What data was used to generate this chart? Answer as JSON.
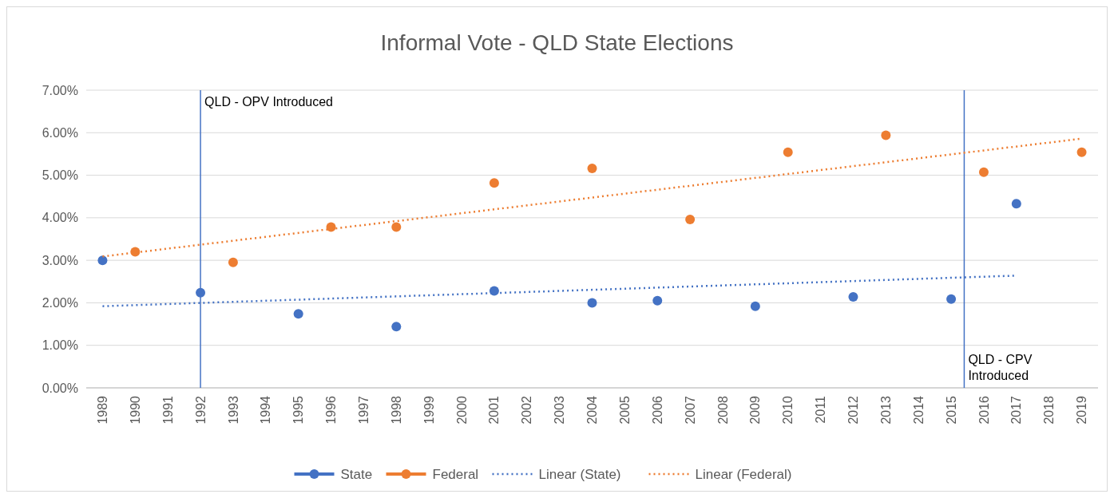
{
  "chart_data": {
    "type": "scatter",
    "title": "Informal Vote - QLD State Elections",
    "xlim": [
      1988.5,
      2019.5
    ],
    "xticks": [
      1989,
      1990,
      1991,
      1992,
      1993,
      1994,
      1995,
      1996,
      1997,
      1998,
      1999,
      2000,
      2001,
      2002,
      2003,
      2004,
      2005,
      2006,
      2007,
      2008,
      2009,
      2010,
      2011,
      2012,
      2013,
      2014,
      2015,
      2016,
      2017,
      2018,
      2019
    ],
    "ylim": [
      0,
      7
    ],
    "yticks": [
      {
        "value": 0,
        "label": "0.00%"
      },
      {
        "value": 1,
        "label": "1.00%"
      },
      {
        "value": 2,
        "label": "2.00%"
      },
      {
        "value": 3,
        "label": "3.00%"
      },
      {
        "value": 4,
        "label": "4.00%"
      },
      {
        "value": 5,
        "label": "5.00%"
      },
      {
        "value": 6,
        "label": "6.00%"
      },
      {
        "value": 7,
        "label": "7.00%"
      }
    ],
    "grid": "y",
    "legend": "bottom",
    "marker": "circle",
    "series": [
      {
        "name": "State",
        "color": "#4472c4",
        "x": [
          1989,
          1992,
          1995,
          1998,
          2001,
          2004,
          2006,
          2009,
          2012,
          2015,
          2017
        ],
        "values": [
          3.0,
          2.24,
          1.74,
          1.44,
          2.28,
          2.0,
          2.05,
          1.92,
          2.14,
          2.09,
          4.33
        ]
      },
      {
        "name": "Federal",
        "color": "#ed7d31",
        "x": [
          1990,
          1993,
          1996,
          1998,
          2001,
          2004,
          2007,
          2010,
          2013,
          2016,
          2019
        ],
        "values": [
          3.2,
          2.95,
          3.78,
          3.78,
          4.82,
          5.16,
          3.96,
          5.54,
          5.94,
          5.07,
          5.54
        ]
      },
      {
        "name": "Linear (State)",
        "type": "line",
        "line_style": "dotted",
        "marker": "none",
        "color": "#4472c4",
        "x": [
          1989,
          2017
        ],
        "values": [
          1.92,
          2.64
        ]
      },
      {
        "name": "Linear (Federal)",
        "type": "line",
        "line_style": "dotted",
        "marker": "none",
        "color": "#ed7d31",
        "x": [
          1989,
          2019
        ],
        "values": [
          3.09,
          5.86
        ]
      }
    ],
    "ref_lines": [
      {
        "axis": "x",
        "value": 1992,
        "label": "QLD - OPV Introduced",
        "color": "#4472c4",
        "line_style": "solid"
      },
      {
        "axis": "x",
        "value": 2015.4,
        "label": "QLD - CPV Introduced",
        "color": "#4472c4",
        "line_style": "solid"
      }
    ]
  }
}
